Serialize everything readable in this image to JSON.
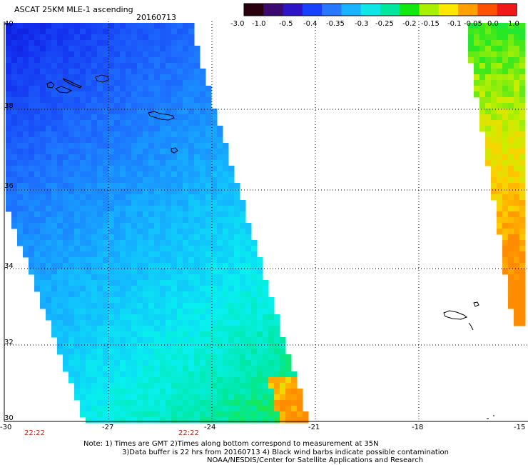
{
  "header": {
    "title": "ASCAT 25KM MLE-1 ascending",
    "date": "20160713"
  },
  "colorbar": {
    "labels": [
      "-3.0",
      "-1.0",
      "-0.5",
      "-0.4",
      "-0.35",
      "-0.3",
      "-0.25",
      "-0.2",
      "-0.15",
      "-0.1",
      "-0.05",
      "0.0",
      "1.0"
    ],
    "colors": [
      "#2a0010",
      "#3b0a6e",
      "#2e14c8",
      "#1a40ff",
      "#2a78ff",
      "#18b4ff",
      "#10e6e6",
      "#00e8a0",
      "#10e810",
      "#a8f000",
      "#ffe800",
      "#ffa000",
      "#ff5000",
      "#f01818"
    ]
  },
  "map": {
    "lon_labels": [
      "-30",
      "-27",
      "-24",
      "-21",
      "-18",
      "-15"
    ],
    "lat_labels": [
      "40",
      "38",
      "36",
      "34",
      "32",
      "30"
    ],
    "lon_range": [
      -30,
      -15
    ],
    "lat_range": [
      30,
      40
    ],
    "gridlines": "dotted"
  },
  "times": [
    "22:22",
    "22:22"
  ],
  "notes": {
    "line1": "Note: 1) Times are GMT 2)Times along bottom correspond to measurement at 35N",
    "line2": "3)Data buffer is 22 hrs from 20160713 4) Black wind barbs indicate possible contamination",
    "line3": "NOAA/NESDIS/Center for Satellite Applications and Research"
  }
}
